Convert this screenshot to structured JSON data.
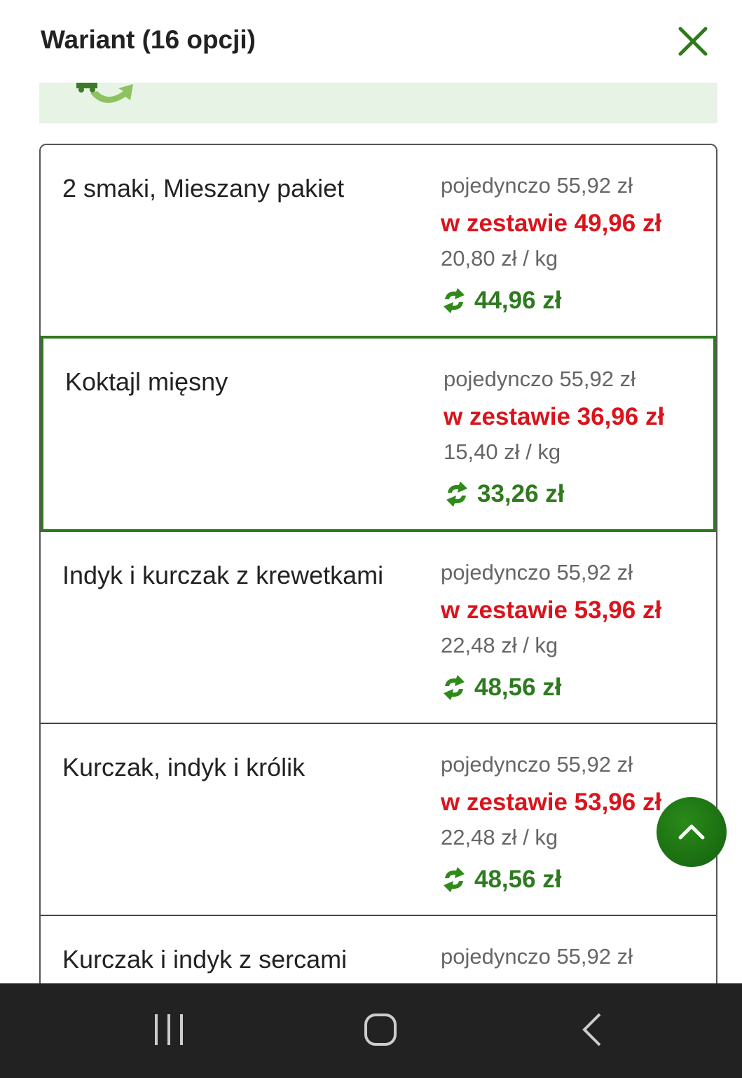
{
  "header": {
    "title": "Wariant (16 opcji)",
    "close_icon": "close-icon"
  },
  "colors": {
    "accent": "#2c7a1a",
    "sale": "#d9141c",
    "subscription": "#2f7a1f"
  },
  "variants": [
    {
      "name": "2 smaki, Mieszany pakiet",
      "single": "pojedynczo 55,92 zł",
      "set": "w zestawie 49,96 zł",
      "per_kg": "20,80 zł / kg",
      "subscription": "44,96 zł",
      "selected": false
    },
    {
      "name": "Koktajl mięsny",
      "single": "pojedynczo 55,92 zł",
      "set": "w zestawie 36,96 zł",
      "per_kg": "15,40 zł / kg",
      "subscription": "33,26 zł",
      "selected": true
    },
    {
      "name": "Indyk i kurczak z krewetkami",
      "single": "pojedynczo 55,92 zł",
      "set": "w zestawie 53,96 zł",
      "per_kg": "22,48 zł / kg",
      "subscription": "48,56 zł",
      "selected": false
    },
    {
      "name": "Kurczak, indyk i królik",
      "single": "pojedynczo 55,92 zł",
      "set": "w zestawie 53,96 zł",
      "per_kg": "22,48 zł / kg",
      "subscription": "48,56 zł",
      "selected": false
    },
    {
      "name": "Kurczak i indyk z sercami",
      "single": "pojedynczo 55,92 zł",
      "set": "",
      "per_kg": "",
      "subscription": "",
      "selected": false
    }
  ]
}
